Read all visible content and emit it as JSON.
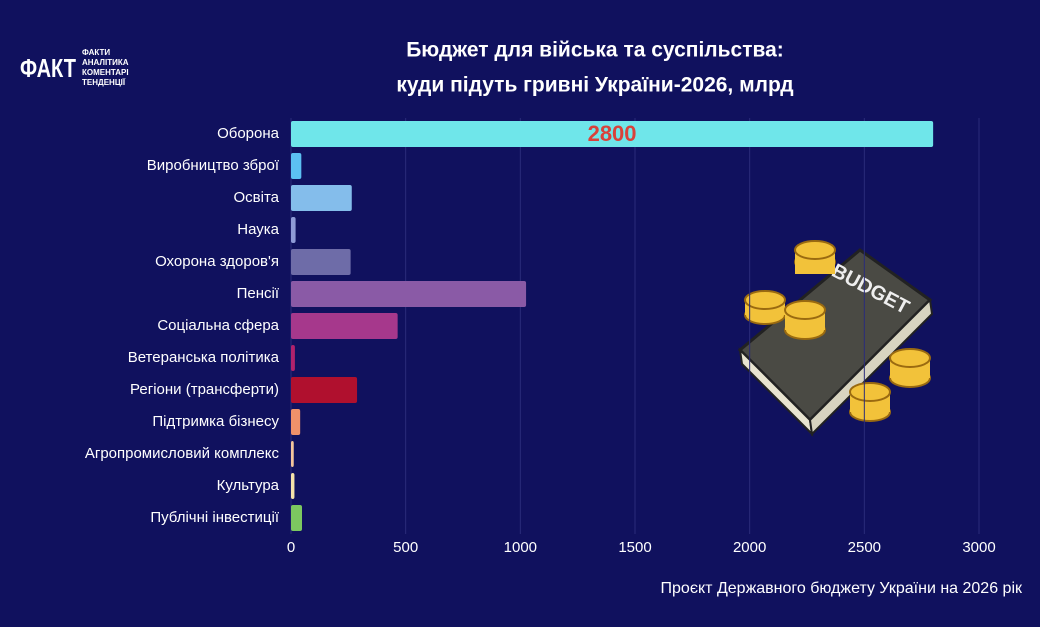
{
  "logo": {
    "mark": "ФАКТ",
    "lines": [
      "ФАКТИ",
      "АНАЛІТИКА",
      "КОМЕНТАРІ",
      "ТЕНДЕНЦІЇ"
    ]
  },
  "illustration": {
    "text": "BUDGET"
  },
  "chart_data": {
    "type": "hbar",
    "title": [
      "Бюджет для війська та суспільства:",
      "куди підуть гривні України-2026, млрд"
    ],
    "categories": [
      "Оборона",
      "Виробництво зброї",
      "Освіта",
      "Наука",
      "Охорона здоров'я",
      "Пенсії",
      "Соціальна сфера",
      "Ветеранська політика",
      "Регіони (трансферти)",
      "Підтримка бізнесу",
      "Агропромисловий комплекс",
      "Культура",
      "Публічні інвестиції"
    ],
    "values": [
      2800,
      45,
      265,
      20,
      260,
      1025,
      465,
      17,
      288,
      40,
      12,
      15,
      48
    ],
    "colors": [
      "#6fe6ea",
      "#5cc0f2",
      "#84bdeb",
      "#8e9ad6",
      "#6e6ca8",
      "#8a5aa6",
      "#a6388c",
      "#b0226c",
      "#b0102e",
      "#ef916a",
      "#f3c59c",
      "#f5e2aa",
      "#7cc860"
    ],
    "xlim": [
      0,
      3000
    ],
    "xticks": [
      0,
      500,
      1000,
      1500,
      2000,
      2500,
      3000
    ],
    "grid": true,
    "data_labels": "max",
    "data_label_color": "#d9413a",
    "source": "Проєкт Державного бюджету України на 2026 рік"
  }
}
